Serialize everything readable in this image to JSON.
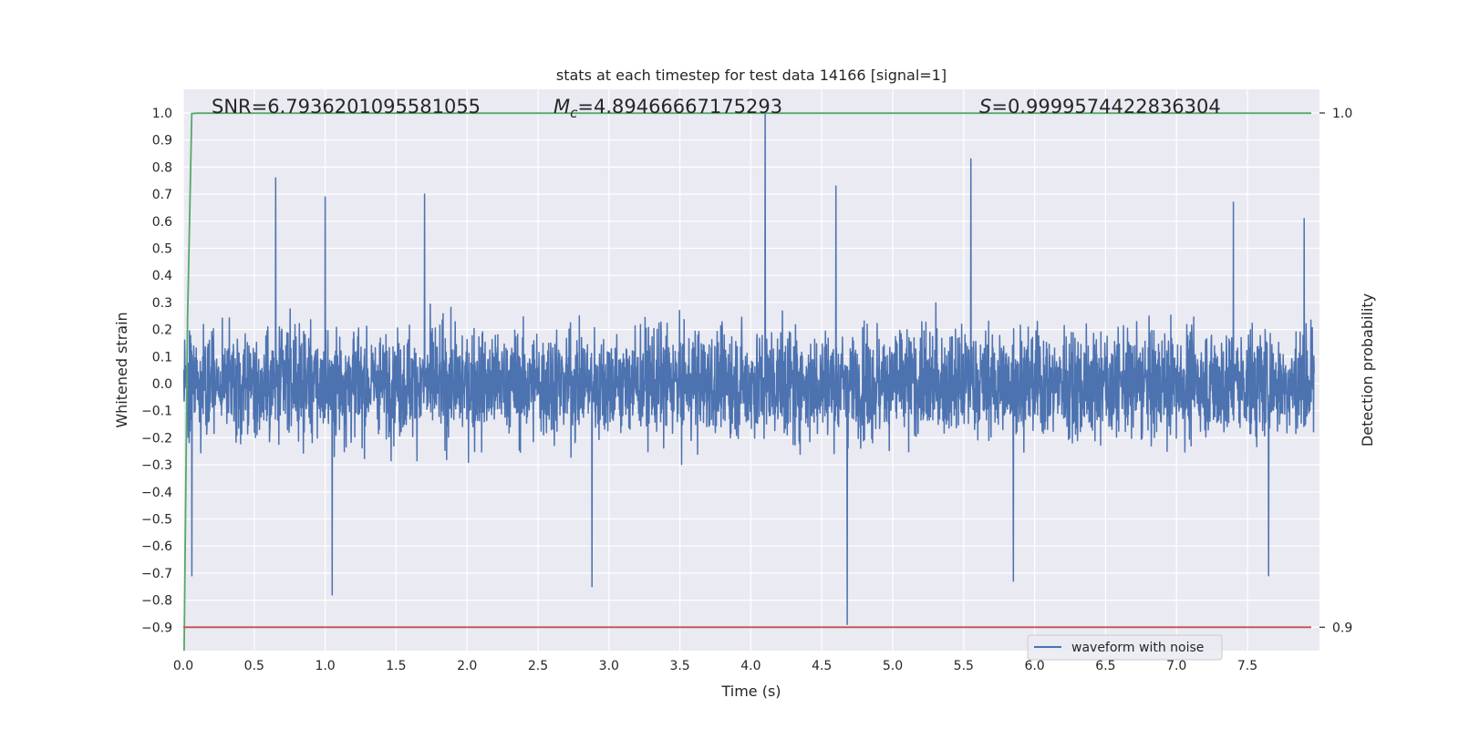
{
  "chart_data": {
    "type": "line",
    "title": "stats at each timestep for test data 14166 [signal=1]",
    "xlabel": "Time (s)",
    "ylabel": "Whitened strain",
    "y2label": "Detection probability",
    "xlim": [
      0.0,
      8.0
    ],
    "ylim": [
      -0.9,
      1.0
    ],
    "y2lim": [
      0.9,
      1.0
    ],
    "xticks": [
      "0.0",
      "0.5",
      "1.0",
      "1.5",
      "2.0",
      "2.5",
      "3.0",
      "3.5",
      "4.0",
      "4.5",
      "5.0",
      "5.5",
      "6.0",
      "6.5",
      "7.0",
      "7.5"
    ],
    "yticks": [
      "1.0",
      "0.9",
      "0.8",
      "0.7",
      "0.6",
      "0.5",
      "0.4",
      "0.3",
      "0.2",
      "0.1",
      "0.0",
      "−0.1",
      "−0.2",
      "−0.3",
      "−0.4",
      "−0.5",
      "−0.6",
      "−0.7",
      "−0.8",
      "−0.9"
    ],
    "y2ticks": [
      "1.0",
      "0.9"
    ],
    "grid": true,
    "annotations": {
      "snr": "SNR=6.7936201095581055",
      "mc_symbol": "M",
      "mc_sub": "c",
      "mc_value": "=4.89466667175293",
      "s_symbol": "S",
      "s_value": "=0.9999574422836304"
    },
    "legend": {
      "placement": "lower-right",
      "entries": [
        "waveform with noise"
      ]
    },
    "series": [
      {
        "name": "waveform with noise",
        "color": "#4c72b0",
        "axis": "left",
        "kind": "noise",
        "noise_typical_range": [
          -0.42,
          0.42
        ],
        "peaks": [
          {
            "x": 0.65,
            "y": 0.76
          },
          {
            "x": 1.0,
            "y": 0.69
          },
          {
            "x": 1.7,
            "y": 0.7
          },
          {
            "x": 4.1,
            "y": 1.0
          },
          {
            "x": 4.6,
            "y": 0.73
          },
          {
            "x": 5.55,
            "y": 0.83
          },
          {
            "x": 7.4,
            "y": 0.67
          },
          {
            "x": 7.9,
            "y": 0.61
          },
          {
            "x": 0.06,
            "y": -0.71
          },
          {
            "x": 1.05,
            "y": -0.78
          },
          {
            "x": 2.88,
            "y": -0.75
          },
          {
            "x": 4.68,
            "y": -0.89
          },
          {
            "x": 5.85,
            "y": -0.73
          },
          {
            "x": 7.65,
            "y": -0.71
          }
        ]
      },
      {
        "name": "",
        "color": "#55a868",
        "axis": "right",
        "x": [
          0.0,
          0.03,
          0.06,
          0.1,
          7.95
        ],
        "y": [
          0.88,
          0.96,
          0.9999,
          0.99996,
          0.99996
        ]
      },
      {
        "name": "",
        "color": "#c44e52",
        "axis": "right",
        "x": [
          0.0,
          7.95
        ],
        "y": [
          0.9,
          0.9
        ]
      }
    ]
  }
}
